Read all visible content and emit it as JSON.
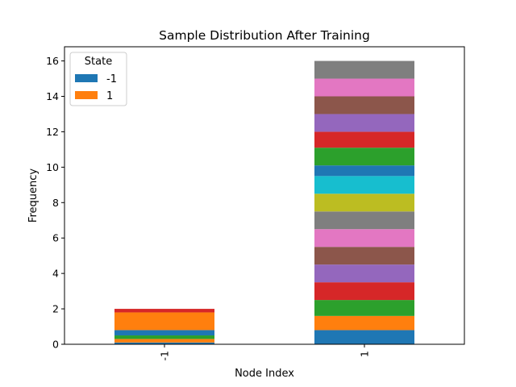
{
  "chart_data": {
    "type": "bar",
    "stacked": true,
    "title": "Sample Distribution After Training",
    "xlabel": "Node Index",
    "ylabel": "Frequency",
    "categories": [
      "-1",
      "1"
    ],
    "ylim": [
      0,
      16.8
    ],
    "yticks": [
      0,
      2,
      4,
      6,
      8,
      10,
      12,
      14,
      16
    ],
    "legend": {
      "title": "State",
      "placement": "top-left",
      "entries": [
        {
          "label": "-1",
          "color": "#1f77b4"
        },
        {
          "label": "1",
          "color": "#ff7f0e"
        }
      ]
    },
    "stacks": [
      {
        "category": "-1",
        "segments": [
          {
            "value": 0.1,
            "color": "#1f77b4"
          },
          {
            "value": 0.2,
            "color": "#ff7f0e"
          },
          {
            "value": 0.2,
            "color": "#2ca02c"
          },
          {
            "value": 0.3,
            "color": "#1f77b4"
          },
          {
            "value": 1.0,
            "color": "#ff7f0e"
          },
          {
            "value": 0.2,
            "color": "#d62728"
          }
        ]
      },
      {
        "category": "1",
        "segments": [
          {
            "value": 0.8,
            "color": "#1f77b4"
          },
          {
            "value": 0.8,
            "color": "#ff7f0e"
          },
          {
            "value": 0.9,
            "color": "#2ca02c"
          },
          {
            "value": 1.0,
            "color": "#d62728"
          },
          {
            "value": 1.0,
            "color": "#9467bd"
          },
          {
            "value": 1.0,
            "color": "#8c564b"
          },
          {
            "value": 1.0,
            "color": "#e377c2"
          },
          {
            "value": 1.0,
            "color": "#7f7f7f"
          },
          {
            "value": 1.0,
            "color": "#bcbd22"
          },
          {
            "value": 1.0,
            "color": "#17becf"
          },
          {
            "value": 0.6,
            "color": "#1f77b4"
          },
          {
            "value": 1.0,
            "color": "#2ca02c"
          },
          {
            "value": 0.9,
            "color": "#d62728"
          },
          {
            "value": 1.0,
            "color": "#9467bd"
          },
          {
            "value": 1.0,
            "color": "#8c564b"
          },
          {
            "value": 1.0,
            "color": "#e377c2"
          },
          {
            "value": 1.0,
            "color": "#7f7f7f"
          }
        ]
      }
    ]
  }
}
